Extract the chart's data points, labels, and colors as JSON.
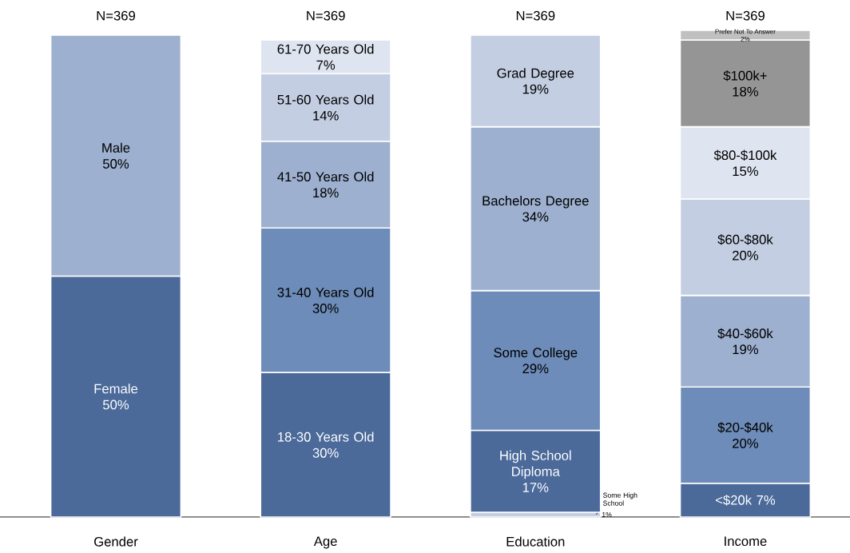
{
  "chart_data": {
    "type": "bar",
    "stacked": true,
    "categories": [
      "Gender",
      "Age",
      "Education",
      "Income"
    ],
    "series": [
      {
        "name": "Female",
        "color": "#4b6a9a",
        "values": [
          50,
          null,
          null,
          null
        ],
        "value_labels": [
          "50%",
          null,
          null,
          null
        ]
      },
      {
        "name": "Male",
        "color": "#9db0cf",
        "values": [
          50,
          null,
          null,
          null
        ],
        "value_labels": [
          "50%",
          null,
          null,
          null
        ]
      },
      {
        "name": "18-30 Years Old",
        "color": "#4b6a9a",
        "values": [
          null,
          30,
          null,
          null
        ],
        "value_labels": [
          null,
          "30%",
          null,
          null
        ]
      },
      {
        "name": "31-40 Years Old",
        "color": "#6d8cb9",
        "values": [
          null,
          30,
          null,
          null
        ],
        "value_labels": [
          null,
          "30%",
          null,
          null
        ]
      },
      {
        "name": "41-50 Years Old",
        "color": "#9db0cf",
        "values": [
          null,
          18,
          null,
          null
        ],
        "value_labels": [
          null,
          "18%",
          null,
          null
        ]
      },
      {
        "name": "51-60 Years Old",
        "color": "#c3cee2",
        "values": [
          null,
          14,
          null,
          null
        ],
        "value_labels": [
          null,
          "14%",
          null,
          null
        ]
      },
      {
        "name": "61-70 Years Old",
        "color": "#dfe5f0",
        "values": [
          null,
          7,
          null,
          null
        ],
        "value_labels": [
          null,
          "7%",
          null,
          null
        ]
      },
      {
        "name": "Some High School",
        "color": "#c3cee2",
        "values": [
          null,
          null,
          1,
          null
        ],
        "value_labels": [
          null,
          null,
          "1%",
          null
        ]
      },
      {
        "name": "High School Diploma",
        "color": "#4b6a9a",
        "values": [
          null,
          null,
          17,
          null
        ],
        "value_labels": [
          null,
          null,
          "17%",
          null
        ]
      },
      {
        "name": "Some College",
        "color": "#6d8cb9",
        "values": [
          null,
          null,
          29,
          null
        ],
        "value_labels": [
          null,
          null,
          "29%",
          null
        ]
      },
      {
        "name": "Bachelors Degree",
        "color": "#9db0cf",
        "values": [
          null,
          null,
          34,
          null
        ],
        "value_labels": [
          null,
          null,
          "34%",
          null
        ]
      },
      {
        "name": "Grad Degree",
        "color": "#c3cee2",
        "values": [
          null,
          null,
          19,
          null
        ],
        "value_labels": [
          null,
          null,
          "19%",
          null
        ]
      },
      {
        "name": "<$20k",
        "color": "#4b6a9a",
        "values": [
          null,
          null,
          null,
          7
        ],
        "value_labels": [
          null,
          null,
          null,
          "7%"
        ]
      },
      {
        "name": "$20-$40k",
        "color": "#6d8cb9",
        "values": [
          null,
          null,
          null,
          20
        ],
        "value_labels": [
          null,
          null,
          null,
          "20%"
        ]
      },
      {
        "name": "$40-$60k",
        "color": "#9db0cf",
        "values": [
          null,
          null,
          null,
          19
        ],
        "value_labels": [
          null,
          null,
          null,
          "19%"
        ]
      },
      {
        "name": "$60-$80k",
        "color": "#c3cee2",
        "values": [
          null,
          null,
          null,
          20
        ],
        "value_labels": [
          null,
          null,
          null,
          "20%"
        ]
      },
      {
        "name": "$80-$100k",
        "color": "#dfe5f0",
        "values": [
          null,
          null,
          null,
          15
        ],
        "value_labels": [
          null,
          null,
          null,
          "15%"
        ]
      },
      {
        "name": "$100k+",
        "color": "#959595",
        "values": [
          null,
          null,
          null,
          18
        ],
        "value_labels": [
          null,
          null,
          null,
          "18%"
        ]
      },
      {
        "name": "Prefer Not To Answer",
        "color": "#c0c0c0",
        "values": [
          null,
          null,
          null,
          2
        ],
        "value_labels": [
          null,
          null,
          null,
          "2%"
        ]
      }
    ],
    "annotations": [
      "N=369",
      "N=369",
      "N=369",
      "N=369"
    ]
  }
}
